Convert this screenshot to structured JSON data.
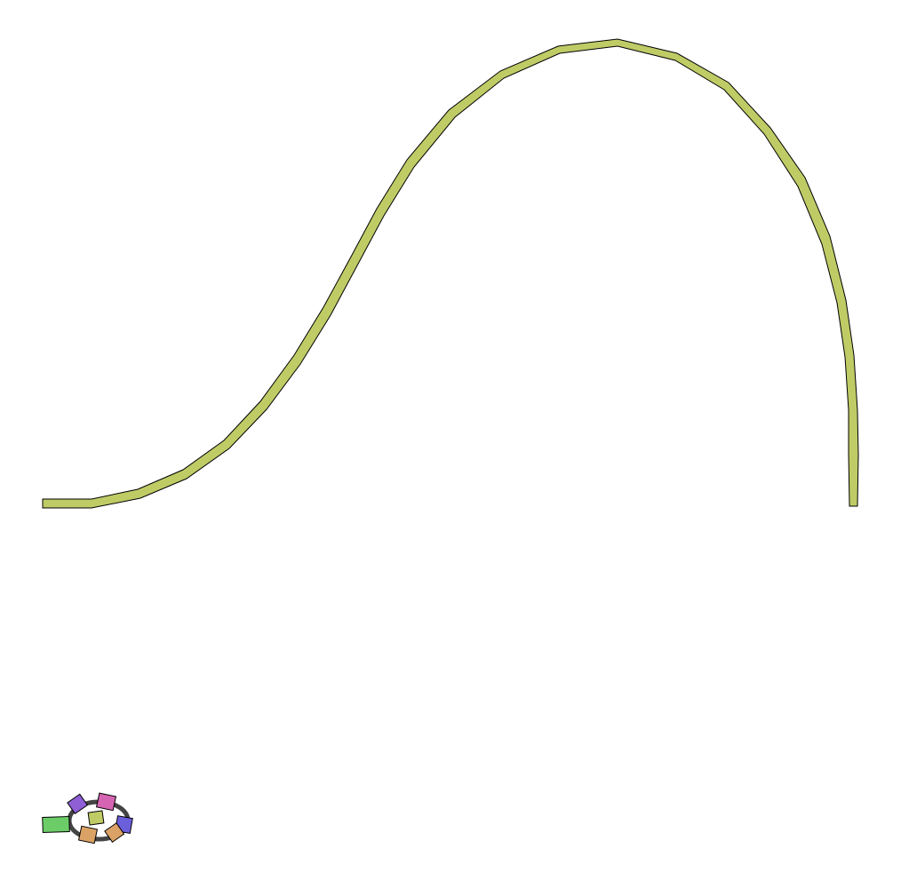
{
  "canvas": {
    "background": "#ffffff"
  },
  "colors": {
    "track": "#bfcc66",
    "outline": "#000000",
    "ring": "#444444",
    "green_block": "#6ccd68",
    "purple_block": "#8f5fd6",
    "pink_block": "#d564b2",
    "blue_block": "#6b5fdc",
    "orange_block": "#dba266",
    "olive_block": "#bfcc66"
  },
  "elements": {
    "track": {
      "name": "curved-track",
      "shape": "polyline-band"
    },
    "cluster": {
      "name": "piece-cluster",
      "pieces": [
        {
          "name": "green-block",
          "color_key": "green_block"
        },
        {
          "name": "purple-block",
          "color_key": "purple_block"
        },
        {
          "name": "pink-block",
          "color_key": "pink_block"
        },
        {
          "name": "blue-block",
          "color_key": "blue_block"
        },
        {
          "name": "orange-block-left",
          "color_key": "orange_block"
        },
        {
          "name": "orange-block-right",
          "color_key": "orange_block"
        },
        {
          "name": "olive-block-center",
          "color_key": "olive_block"
        }
      ]
    }
  }
}
